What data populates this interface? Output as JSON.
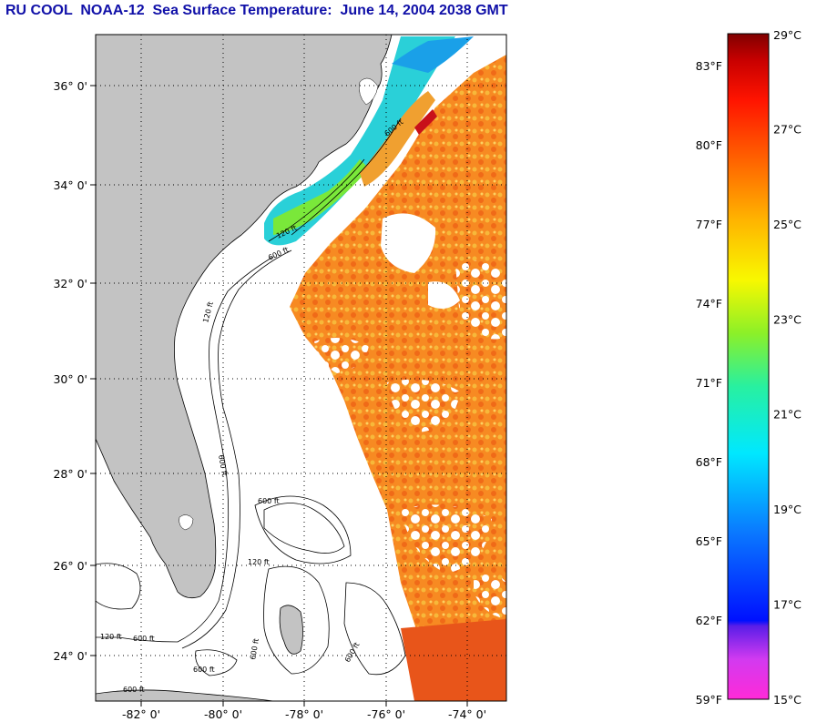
{
  "title": "RU COOL  NOAA-12  Sea Surface Temperature:  June 14, 2004 2038 GMT",
  "map": {
    "lat_ticks": [
      "36° 0'",
      "34° 0'",
      "32° 0'",
      "30° 0'",
      "28° 0'",
      "26° 0'",
      "24° 0'"
    ],
    "lon_ticks": [
      "-82° 0'",
      "-80° 0'",
      "-78° 0'",
      "-76° 0'",
      "-74° 0'"
    ],
    "contour_labels": [
      "120 ft",
      "600 ft",
      "600 ft",
      "120 ft",
      "600 ft",
      "600 ft",
      "120 ft",
      "600 ft",
      "600 ft",
      "600 ft",
      "120 ft",
      "600 ft",
      "600 ft"
    ],
    "colors": {
      "land": "#c3c3c3",
      "water_cloud": "#ffffff",
      "sst_warm": "#f77a1c",
      "sst_mid": "#f7b23a",
      "sst_cool": "#22c6ea"
    }
  },
  "colorbar": {
    "fahrenheit_labels": [
      "83°F",
      "80°F",
      "77°F",
      "74°F",
      "71°F",
      "68°F",
      "65°F",
      "62°F",
      "59°F"
    ],
    "celsius_labels": [
      "29°C",
      "27°C",
      "25°C",
      "23°C",
      "21°C",
      "19°C",
      "17°C",
      "15°C"
    ],
    "range_c": [
      15,
      29
    ],
    "range_f": [
      59,
      84.2
    ]
  }
}
